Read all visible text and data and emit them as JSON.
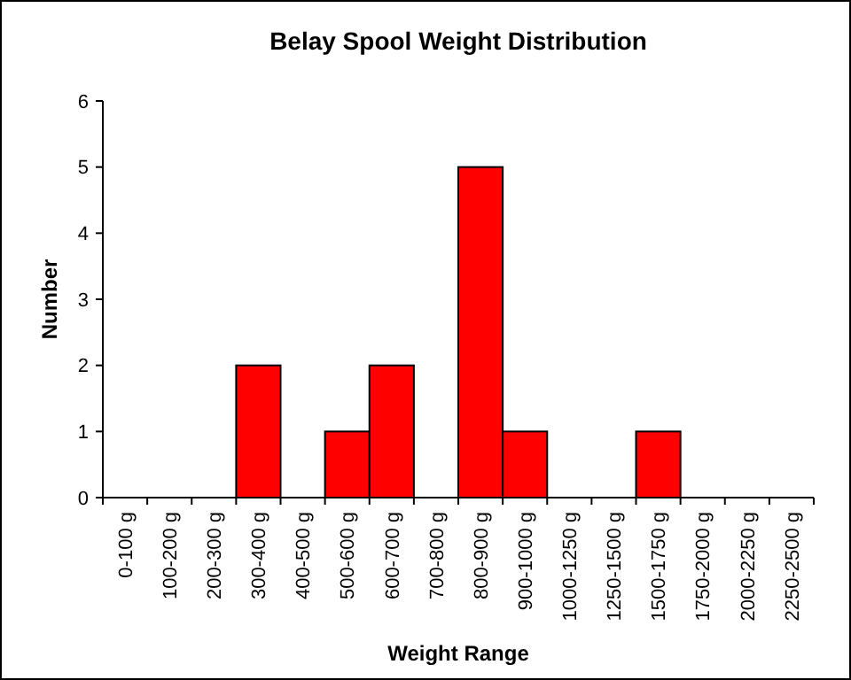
{
  "chart_data": {
    "type": "bar",
    "title": "Belay Spool Weight Distribution",
    "xlabel": "Weight Range",
    "ylabel": "Number",
    "categories": [
      "0-100 g",
      "100-200 g",
      "200-300 g",
      "300-400 g",
      "400-500 g",
      "500-600 g",
      "600-700 g",
      "700-800 g",
      "800-900 g",
      "900-1000 g",
      "1000-1250 g",
      "1250-1500 g",
      "1500-1750 g",
      "1750-2000 g",
      "2000-2250 g",
      "2250-2500 g"
    ],
    "values": [
      0,
      0,
      0,
      2,
      0,
      1,
      2,
      0,
      5,
      1,
      0,
      0,
      1,
      0,
      0,
      0
    ],
    "color": "#ff0000",
    "ylim": [
      0,
      6
    ],
    "yticks": [
      0,
      1,
      2,
      3,
      4,
      5,
      6
    ],
    "grid": false
  }
}
